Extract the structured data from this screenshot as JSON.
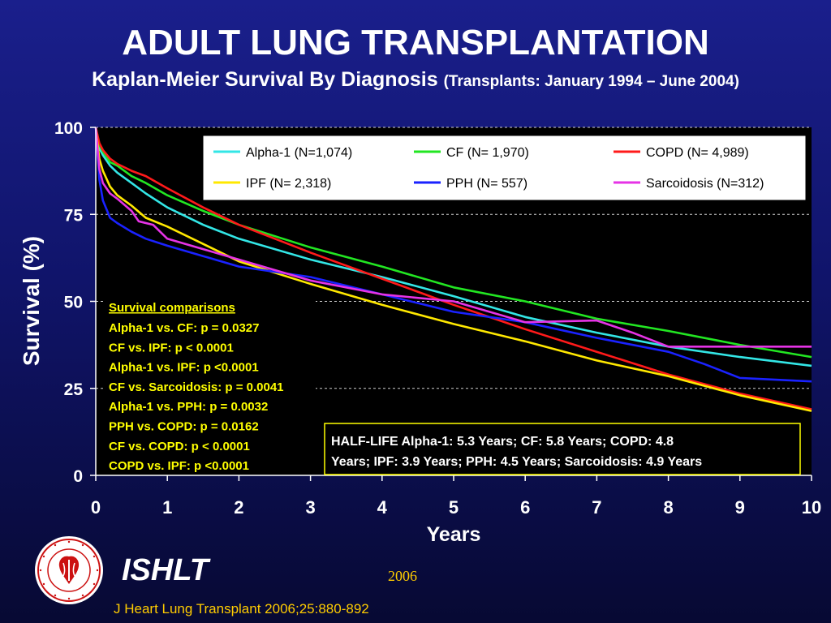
{
  "header": {
    "title": "ADULT LUNG TRANSPLANTATION",
    "subtitle_main": "Kaplan-Meier Survival By Diagnosis",
    "subtitle_note": "(Transplants: January 1994 – June 2004)"
  },
  "colors": {
    "background_top": "#1a1f8c",
    "plot_background": "#000000",
    "annotation_text": "#ffff00"
  },
  "chart_data": {
    "type": "line",
    "title": "ADULT LUNG TRANSPLANTATION",
    "subtitle": "Kaplan-Meier Survival By Diagnosis (Transplants: January 1994 – June 2004)",
    "xlabel": "Years",
    "ylabel": "Survival (%)",
    "xlim": [
      0,
      10
    ],
    "ylim": [
      0,
      100
    ],
    "xticks": [
      0,
      1,
      2,
      3,
      4,
      5,
      6,
      7,
      8,
      9,
      10
    ],
    "yticks": [
      0,
      25,
      50,
      75,
      100
    ],
    "grid": "horizontal dashed",
    "legend_position": "top",
    "series": [
      {
        "name": "Alpha-1 (N=1,074)",
        "color": "#33e6e6",
        "x": [
          0,
          0.05,
          0.1,
          0.2,
          0.3,
          0.5,
          0.7,
          1,
          1.5,
          2,
          3,
          4,
          5,
          6,
          7,
          8,
          9,
          10
        ],
        "y": [
          100,
          94,
          92,
          89,
          87,
          84,
          81,
          77,
          72,
          68,
          62,
          57,
          51.5,
          45.5,
          41,
          37,
          34,
          31.5
        ]
      },
      {
        "name": "CF (N= 1,970)",
        "color": "#22e622",
        "x": [
          0,
          0.05,
          0.1,
          0.2,
          0.3,
          0.5,
          0.7,
          1,
          1.5,
          2,
          3,
          4,
          5,
          6,
          7,
          8,
          9,
          10
        ],
        "y": [
          100,
          95,
          93,
          90,
          89,
          86,
          84,
          80.5,
          76,
          72,
          65.5,
          60,
          54,
          50,
          45,
          41.5,
          37.5,
          34
        ]
      },
      {
        "name": "COPD (N= 4,989)",
        "color": "#ff1a1a",
        "x": [
          0,
          0.05,
          0.1,
          0.2,
          0.3,
          0.5,
          0.7,
          1,
          1.5,
          2,
          3,
          4,
          5,
          6,
          7,
          8,
          9,
          10
        ],
        "y": [
          100,
          95.5,
          93.5,
          91,
          89.5,
          87.5,
          86,
          82.5,
          77,
          72,
          64,
          56.5,
          49,
          42,
          35.5,
          29,
          23.5,
          19
        ]
      },
      {
        "name": "IPF (N= 2,318)",
        "color": "#ffe800",
        "x": [
          0,
          0.05,
          0.1,
          0.2,
          0.3,
          0.5,
          0.7,
          1,
          1.5,
          2,
          3,
          4,
          5,
          6,
          7,
          8,
          9,
          10
        ],
        "y": [
          100,
          91,
          87.5,
          83,
          80.5,
          77.5,
          74,
          71.5,
          66.5,
          61.5,
          55,
          49,
          43.5,
          38.5,
          33,
          28.5,
          23,
          18.5
        ]
      },
      {
        "name": "PPH (N= 557)",
        "color": "#1a22ff",
        "x": [
          0,
          0.05,
          0.1,
          0.2,
          0.3,
          0.5,
          0.7,
          1,
          1.5,
          2,
          3,
          4,
          5,
          6,
          7,
          8,
          8.5,
          9,
          10
        ],
        "y": [
          100,
          85,
          79,
          74,
          72.5,
          70,
          68,
          66,
          63,
          60,
          57,
          52,
          47,
          44,
          39.5,
          35.5,
          32,
          28,
          27
        ]
      },
      {
        "name": "Sarcoidosis (N=312)",
        "color": "#e633e6",
        "x": [
          0,
          0.05,
          0.1,
          0.2,
          0.3,
          0.5,
          0.6,
          0.8,
          1,
          1.5,
          2,
          3,
          4,
          5,
          6,
          7,
          7.5,
          8,
          9,
          10
        ],
        "y": [
          100,
          88,
          84,
          81,
          79.5,
          76,
          73,
          72,
          68,
          65,
          62,
          56,
          52,
          50,
          44,
          44.5,
          41,
          37,
          37,
          37
        ]
      }
    ],
    "comparisons": {
      "heading": "Survival comparisons",
      "lines": [
        "Alpha-1 vs. CF:  p = 0.0327",
        "CF vs. IPF: p < 0.0001",
        "Alpha-1 vs. IPF: p <0.0001",
        "CF vs. Sarcoidosis: p = 0.0041",
        "Alpha-1 vs. PPH: p = 0.0032",
        "PPH vs. COPD: p = 0.0162",
        "CF vs. COPD: p < 0.0001",
        "COPD vs. IPF: p <0.0001"
      ]
    },
    "half_life": {
      "line1": "HALF-LIFE   Alpha-1: 5.3 Years; CF: 5.8 Years; COPD: 4.8",
      "line2": "Years; IPF: 3.9 Years; PPH: 4.5 Years; Sarcoidosis: 4.9 Years"
    }
  },
  "footer": {
    "logo_icon": "ishlt-seal-icon",
    "logo_text": "INTERNATIONAL SOCIETY FOR HEART & LUNG TRANSPLANTATION",
    "organization": "ISHLT",
    "year": "2006",
    "citation": "J Heart Lung Transplant 2006;25:880-892"
  }
}
